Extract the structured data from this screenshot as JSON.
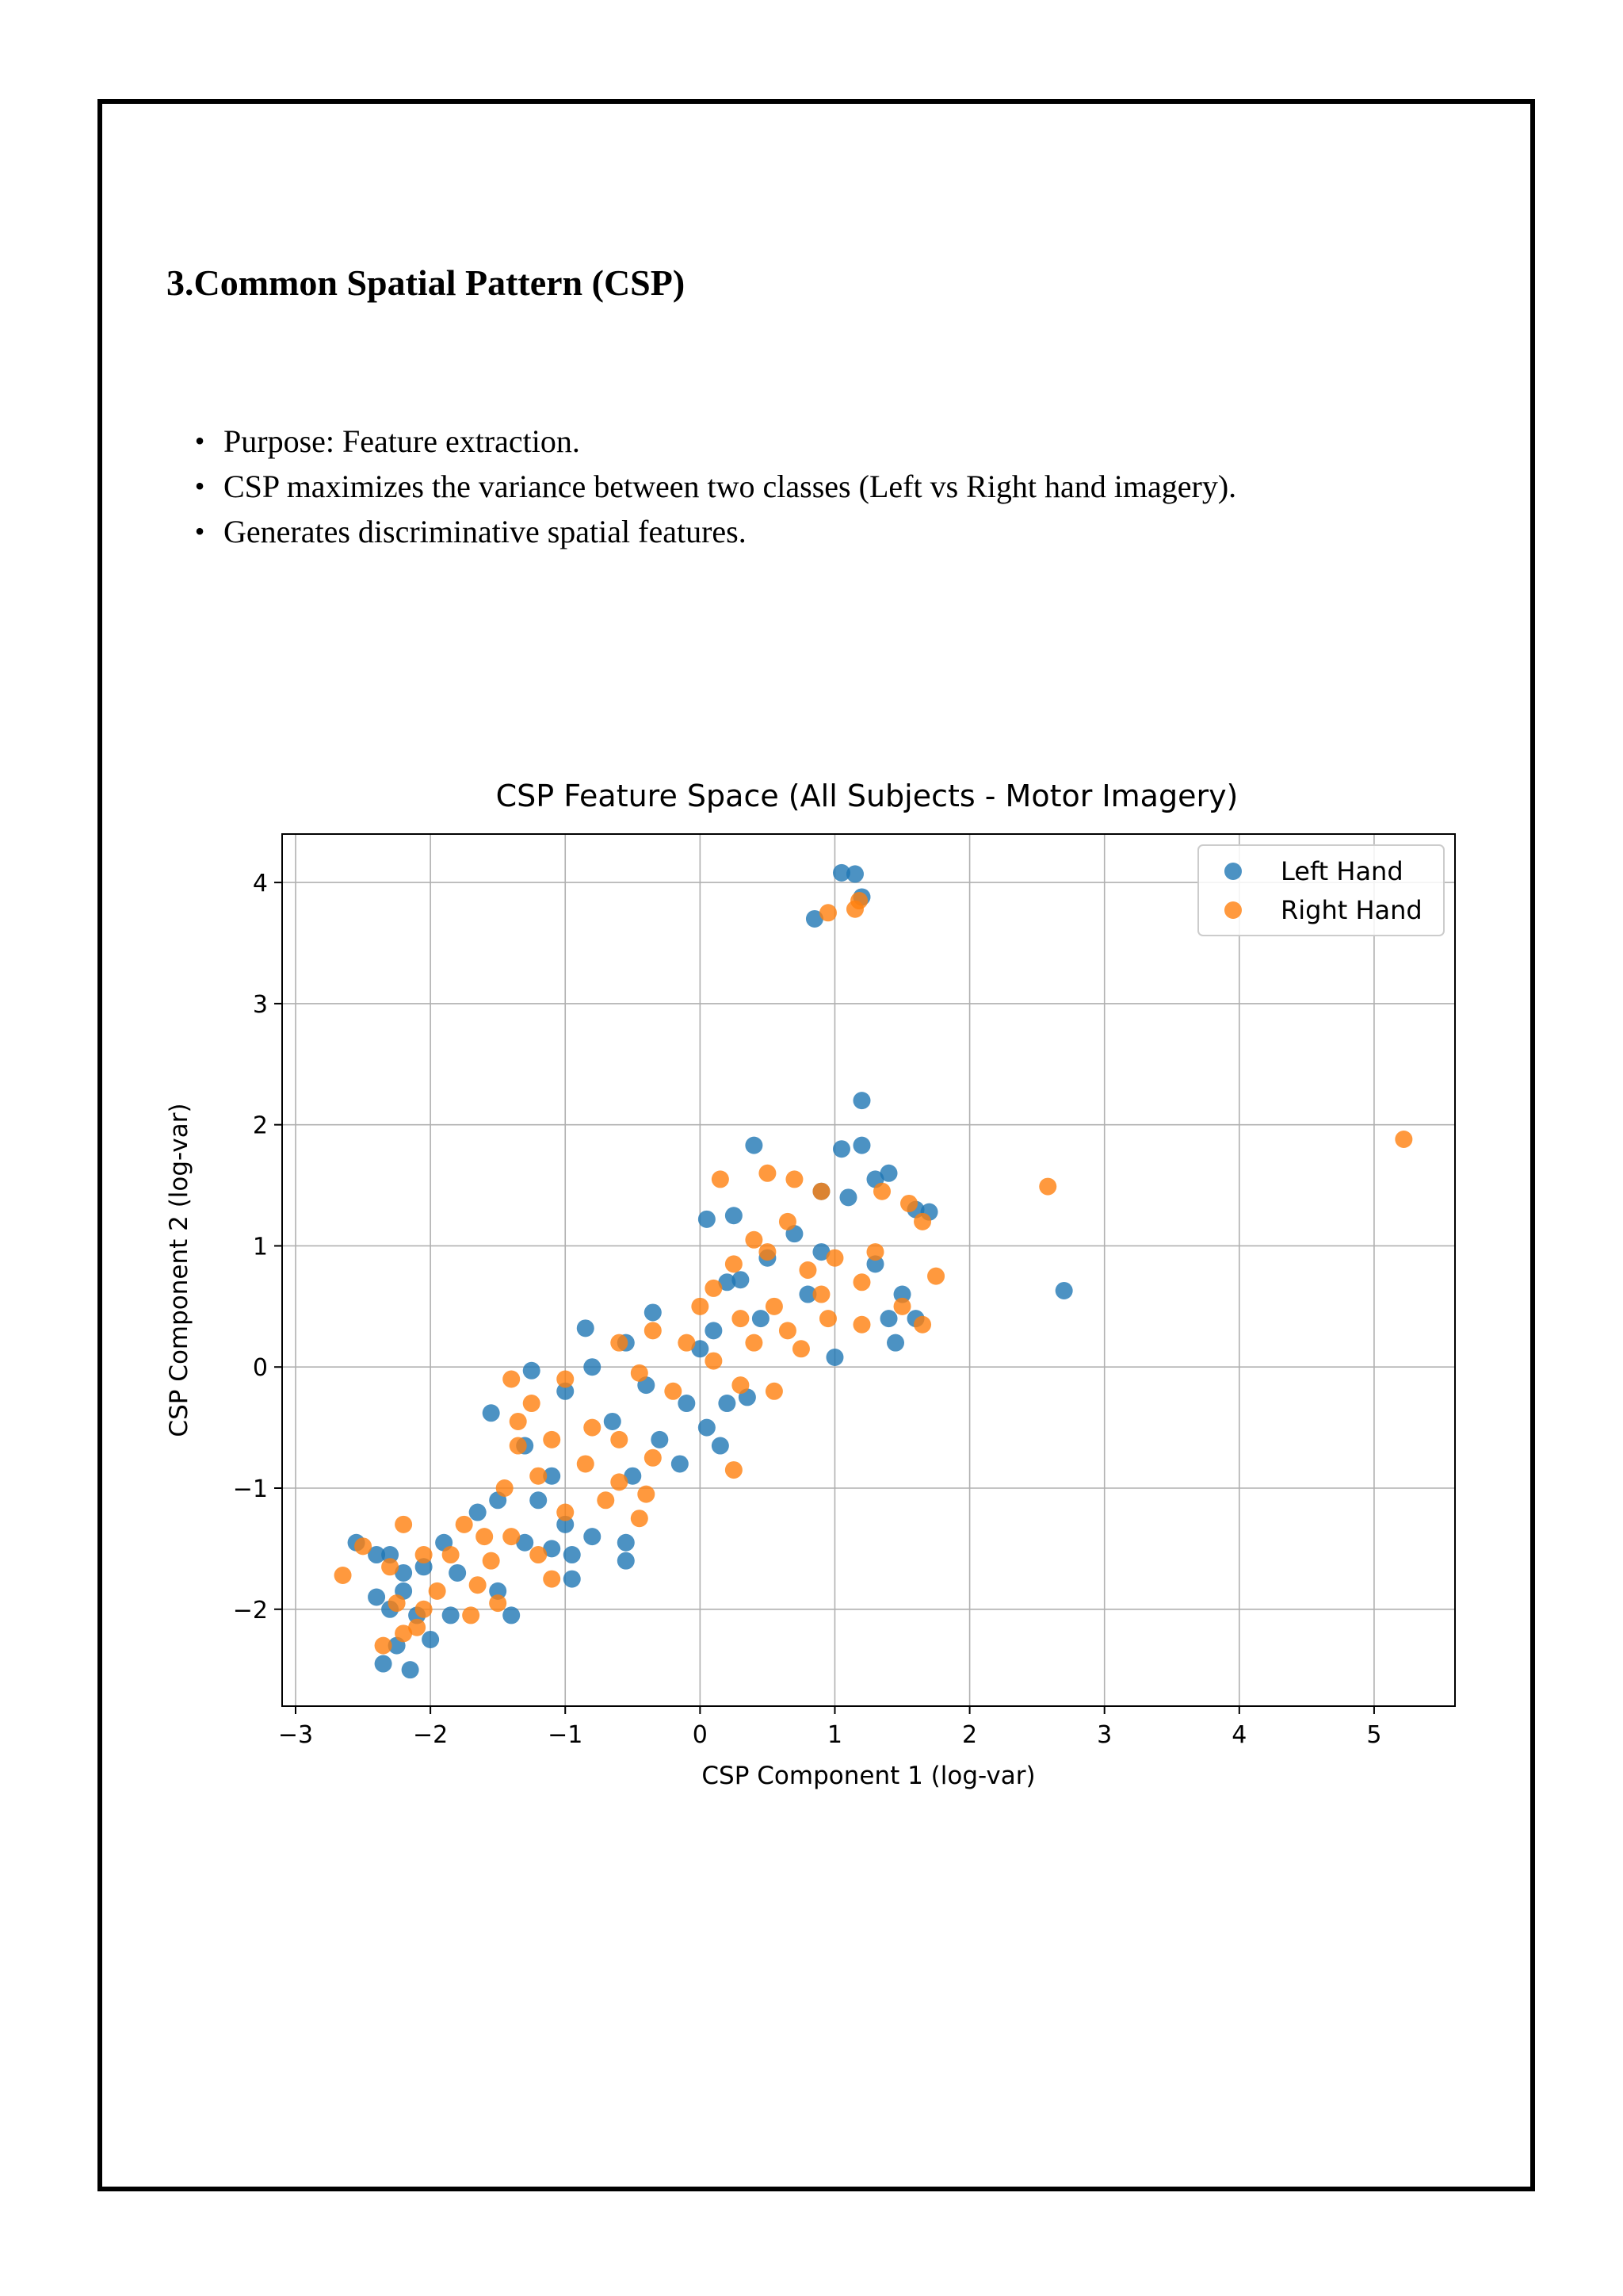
{
  "section": {
    "heading": "3.Common Spatial Pattern (CSP)",
    "bullets": [
      "Purpose: Feature extraction.",
      "CSP maximizes the variance between two classes (Left vs Right hand imagery).",
      "Generates discriminative spatial features."
    ]
  },
  "colors": {
    "left": "#1f77b4",
    "right": "#ff7f0e"
  },
  "chart_data": {
    "type": "scatter",
    "title": "CSP Feature Space (All Subjects - Motor Imagery)",
    "xlabel": "CSP Component 1 (log-var)",
    "ylabel": "CSP Component 2 (log-var)",
    "xlim": [
      -3.1,
      5.6
    ],
    "ylim": [
      -2.8,
      4.4
    ],
    "xticks": [
      -3,
      -2,
      -1,
      0,
      1,
      2,
      3,
      4,
      5
    ],
    "yticks": [
      -2,
      -1,
      0,
      1,
      2,
      3,
      4
    ],
    "xtick_labels": [
      "−3",
      "−2",
      "−1",
      "0",
      "1",
      "2",
      "3",
      "4",
      "5"
    ],
    "ytick_labels": [
      "−2",
      "−1",
      "0",
      "1",
      "2",
      "3",
      "4"
    ],
    "grid": true,
    "legend": "top-right",
    "series": [
      {
        "name": "Left Hand",
        "points": [
          [
            1.05,
            4.08
          ],
          [
            1.15,
            4.07
          ],
          [
            1.2,
            3.88
          ],
          [
            0.85,
            3.7
          ],
          [
            1.2,
            2.2
          ],
          [
            0.4,
            1.83
          ],
          [
            1.2,
            1.83
          ],
          [
            1.05,
            1.8
          ],
          [
            1.4,
            1.6
          ],
          [
            1.3,
            1.55
          ],
          [
            1.7,
            1.28
          ],
          [
            1.6,
            1.3
          ],
          [
            2.7,
            0.63
          ],
          [
            0.05,
            1.22
          ],
          [
            0.25,
            1.25
          ],
          [
            0.9,
            1.45
          ],
          [
            1.1,
            1.4
          ],
          [
            0.7,
            1.1
          ],
          [
            0.5,
            0.9
          ],
          [
            0.3,
            0.72
          ],
          [
            0.9,
            0.95
          ],
          [
            1.3,
            0.85
          ],
          [
            1.5,
            0.6
          ],
          [
            1.6,
            0.4
          ],
          [
            1.4,
            0.4
          ],
          [
            1.45,
            0.2
          ],
          [
            1.0,
            0.08
          ],
          [
            0.2,
            0.7
          ],
          [
            0.8,
            0.6
          ],
          [
            0.1,
            0.3
          ],
          [
            -0.35,
            0.45
          ],
          [
            -0.55,
            0.2
          ],
          [
            -0.4,
            -0.15
          ],
          [
            -0.1,
            -0.3
          ],
          [
            0.2,
            -0.3
          ],
          [
            0.35,
            -0.25
          ],
          [
            0.05,
            -0.5
          ],
          [
            0.15,
            -0.65
          ],
          [
            -0.15,
            -0.8
          ],
          [
            -0.5,
            -0.9
          ],
          [
            -0.85,
            0.32
          ],
          [
            -0.8,
            0.0
          ],
          [
            -1.0,
            -0.2
          ],
          [
            -1.25,
            -0.03
          ],
          [
            -1.55,
            -0.38
          ],
          [
            -1.3,
            -0.65
          ],
          [
            -1.1,
            -0.9
          ],
          [
            -1.2,
            -1.1
          ],
          [
            -1.0,
            -1.3
          ],
          [
            -0.8,
            -1.4
          ],
          [
            -0.95,
            -1.55
          ],
          [
            -0.55,
            -1.45
          ],
          [
            -0.55,
            -1.6
          ],
          [
            -0.95,
            -1.75
          ],
          [
            -1.1,
            -1.5
          ],
          [
            -1.5,
            -1.1
          ],
          [
            -1.65,
            -1.2
          ],
          [
            -1.9,
            -1.45
          ],
          [
            -1.8,
            -1.7
          ],
          [
            -1.85,
            -2.05
          ],
          [
            -2.05,
            -1.65
          ],
          [
            -2.2,
            -1.7
          ],
          [
            -2.3,
            -1.55
          ],
          [
            -2.55,
            -1.45
          ],
          [
            -2.4,
            -1.55
          ],
          [
            -2.4,
            -1.9
          ],
          [
            -2.2,
            -1.85
          ],
          [
            -2.3,
            -2.0
          ],
          [
            -2.1,
            -2.05
          ],
          [
            -2.0,
            -2.25
          ],
          [
            -2.25,
            -2.3
          ],
          [
            -2.35,
            -2.45
          ],
          [
            -2.15,
            -2.5
          ],
          [
            -1.4,
            -2.05
          ],
          [
            -1.5,
            -1.85
          ],
          [
            -1.3,
            -1.45
          ],
          [
            -0.3,
            -0.6
          ],
          [
            -0.65,
            -0.45
          ],
          [
            0.0,
            0.15
          ],
          [
            0.45,
            0.4
          ]
        ]
      },
      {
        "name": "Right Hand",
        "points": [
          [
            0.95,
            3.75
          ],
          [
            1.15,
            3.78
          ],
          [
            1.18,
            3.85
          ],
          [
            5.22,
            1.88
          ],
          [
            2.58,
            1.49
          ],
          [
            0.15,
            1.55
          ],
          [
            0.5,
            1.6
          ],
          [
            0.7,
            1.55
          ],
          [
            0.9,
            1.45
          ],
          [
            1.35,
            1.45
          ],
          [
            1.55,
            1.35
          ],
          [
            1.65,
            1.2
          ],
          [
            1.75,
            0.75
          ],
          [
            1.3,
            0.95
          ],
          [
            0.65,
            1.2
          ],
          [
            0.4,
            1.05
          ],
          [
            0.25,
            0.85
          ],
          [
            0.8,
            0.8
          ],
          [
            1.0,
            0.9
          ],
          [
            1.2,
            0.7
          ],
          [
            0.9,
            0.6
          ],
          [
            1.5,
            0.5
          ],
          [
            1.65,
            0.35
          ],
          [
            1.2,
            0.35
          ],
          [
            0.55,
            0.5
          ],
          [
            0.3,
            0.4
          ],
          [
            0.0,
            0.5
          ],
          [
            -0.1,
            0.2
          ],
          [
            -0.35,
            0.3
          ],
          [
            -0.6,
            0.2
          ],
          [
            -0.45,
            -0.05
          ],
          [
            -0.2,
            -0.2
          ],
          [
            0.1,
            0.05
          ],
          [
            0.3,
            -0.15
          ],
          [
            0.55,
            -0.2
          ],
          [
            0.75,
            0.15
          ],
          [
            0.95,
            0.4
          ],
          [
            0.65,
            0.3
          ],
          [
            0.4,
            0.2
          ],
          [
            0.25,
            -0.85
          ],
          [
            -1.0,
            -0.1
          ],
          [
            -1.4,
            -0.1
          ],
          [
            -1.25,
            -0.3
          ],
          [
            -1.35,
            -0.45
          ],
          [
            -1.1,
            -0.6
          ],
          [
            -0.8,
            -0.5
          ],
          [
            -0.6,
            -0.6
          ],
          [
            -0.85,
            -0.8
          ],
          [
            -0.6,
            -0.95
          ],
          [
            -0.35,
            -0.75
          ],
          [
            -1.35,
            -0.65
          ],
          [
            -1.2,
            -0.9
          ],
          [
            -1.45,
            -1.0
          ],
          [
            -1.0,
            -1.2
          ],
          [
            -0.7,
            -1.1
          ],
          [
            -0.45,
            -1.25
          ],
          [
            -0.4,
            -1.05
          ],
          [
            -1.2,
            -1.55
          ],
          [
            -1.1,
            -1.75
          ],
          [
            -1.4,
            -1.4
          ],
          [
            -1.55,
            -1.6
          ],
          [
            -1.75,
            -1.3
          ],
          [
            -1.85,
            -1.55
          ],
          [
            -1.65,
            -1.8
          ],
          [
            -1.5,
            -1.95
          ],
          [
            -1.7,
            -2.05
          ],
          [
            -1.95,
            -1.85
          ],
          [
            -2.05,
            -1.55
          ],
          [
            -2.2,
            -1.3
          ],
          [
            -2.3,
            -1.65
          ],
          [
            -2.5,
            -1.48
          ],
          [
            -2.65,
            -1.72
          ],
          [
            -2.35,
            -2.3
          ],
          [
            -2.2,
            -2.2
          ],
          [
            -2.05,
            -2.0
          ],
          [
            -2.25,
            -1.95
          ],
          [
            -2.1,
            -2.15
          ],
          [
            -1.6,
            -1.4
          ],
          [
            0.1,
            0.65
          ],
          [
            0.5,
            0.95
          ]
        ]
      }
    ]
  }
}
